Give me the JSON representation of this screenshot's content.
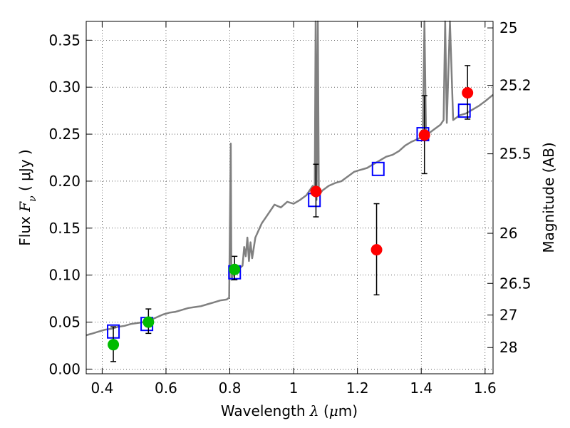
{
  "chart_data": {
    "type": "scatter",
    "xlabel_prefix": "Wavelength  ",
    "xlabel_symbol": "λ",
    "xlabel_unit_open": " (",
    "xlabel_unit_mu": "μ",
    "xlabel_unit_close": "m)",
    "ylabel_prefix": "Flux  ",
    "ylabel_symbol": "F",
    "ylabel_sub": "ν",
    "ylabel_unit": "  ( μJy )",
    "y2label": "Magnitude (AB)",
    "xlim": [
      0.35,
      1.625
    ],
    "ylim": [
      -0.005,
      0.37
    ],
    "grid": true,
    "xticks": [
      0.4,
      0.6,
      0.8,
      1.0,
      1.2,
      1.4,
      1.6
    ],
    "xtick_labels": [
      "0.4",
      "0.6",
      "0.8",
      "1",
      "1.2",
      "1.4",
      "1.6"
    ],
    "yticks": [
      0.0,
      0.05,
      0.1,
      0.15,
      0.2,
      0.25,
      0.3,
      0.35
    ],
    "ytick_labels": [
      "0.00",
      "0.05",
      "0.10",
      "0.15",
      "0.20",
      "0.25",
      "0.30",
      "0.35"
    ],
    "y2ticks": [
      {
        "label": "25",
        "flux": 0.3631
      },
      {
        "label": "25.2",
        "flux": 0.302
      },
      {
        "label": "25.5",
        "flux": 0.2291
      },
      {
        "label": "26",
        "flux": 0.1445
      },
      {
        "label": "26.5",
        "flux": 0.0912
      },
      {
        "label": "27",
        "flux": 0.0575
      },
      {
        "label": "28",
        "flux": 0.0229
      }
    ],
    "series": [
      {
        "kind": "line",
        "color": "#808080",
        "x": [
          0.35,
          0.37,
          0.39,
          0.41,
          0.43,
          0.45,
          0.47,
          0.49,
          0.51,
          0.53,
          0.55,
          0.57,
          0.59,
          0.61,
          0.63,
          0.65,
          0.67,
          0.69,
          0.71,
          0.73,
          0.75,
          0.77,
          0.79,
          0.798,
          0.803,
          0.805,
          0.81,
          0.82,
          0.84,
          0.845,
          0.85,
          0.855,
          0.86,
          0.865,
          0.87,
          0.88,
          0.9,
          0.92,
          0.94,
          0.96,
          0.98,
          1.0,
          1.02,
          1.04,
          1.05,
          1.06,
          1.066,
          1.069,
          1.072,
          1.076,
          1.079,
          1.09,
          1.11,
          1.13,
          1.15,
          1.17,
          1.19,
          1.21,
          1.23,
          1.25,
          1.27,
          1.29,
          1.31,
          1.33,
          1.35,
          1.37,
          1.39,
          1.405,
          1.41,
          1.415,
          1.42,
          1.44,
          1.46,
          1.47,
          1.475,
          1.48,
          1.49,
          1.5,
          1.52,
          1.54,
          1.56,
          1.58,
          1.6,
          1.625
        ],
        "y": [
          0.036,
          0.038,
          0.04,
          0.042,
          0.043,
          0.045,
          0.046,
          0.048,
          0.049,
          0.05,
          0.052,
          0.055,
          0.058,
          0.06,
          0.061,
          0.063,
          0.065,
          0.066,
          0.067,
          0.069,
          0.071,
          0.073,
          0.074,
          0.076,
          0.24,
          0.095,
          0.1,
          0.104,
          0.11,
          0.13,
          0.12,
          0.14,
          0.115,
          0.135,
          0.118,
          0.14,
          0.155,
          0.165,
          0.175,
          0.172,
          0.178,
          0.176,
          0.18,
          0.185,
          0.19,
          0.195,
          0.185,
          0.37,
          0.18,
          0.37,
          0.185,
          0.19,
          0.195,
          0.198,
          0.2,
          0.205,
          0.21,
          0.212,
          0.214,
          0.218,
          0.222,
          0.226,
          0.228,
          0.232,
          0.238,
          0.242,
          0.245,
          0.248,
          0.37,
          0.245,
          0.25,
          0.255,
          0.26,
          0.265,
          0.37,
          0.262,
          0.37,
          0.265,
          0.27,
          0.272,
          0.276,
          0.28,
          0.285,
          0.292
        ]
      },
      {
        "kind": "squares",
        "color": "#0000ff",
        "x": [
          0.435,
          0.54,
          0.815,
          1.065,
          1.265,
          1.405,
          1.535
        ],
        "y": [
          0.04,
          0.048,
          0.103,
          0.18,
          0.213,
          0.25,
          0.275
        ]
      },
      {
        "kind": "points",
        "color": "#00bb00",
        "x": [
          0.435,
          0.545,
          0.815
        ],
        "y": [
          0.026,
          0.05,
          0.106
        ],
        "yerr_low": [
          0.008,
          0.038,
          0.095
        ],
        "yerr_high": [
          0.045,
          0.064,
          0.12
        ]
      },
      {
        "kind": "points",
        "color": "#ff0000",
        "x": [
          1.07,
          1.26,
          1.41,
          1.545
        ],
        "y": [
          0.189,
          0.127,
          0.249,
          0.294
        ],
        "yerr_low": [
          0.162,
          0.079,
          0.208,
          0.266
        ],
        "yerr_high": [
          0.218,
          0.176,
          0.291,
          0.323
        ]
      }
    ]
  }
}
